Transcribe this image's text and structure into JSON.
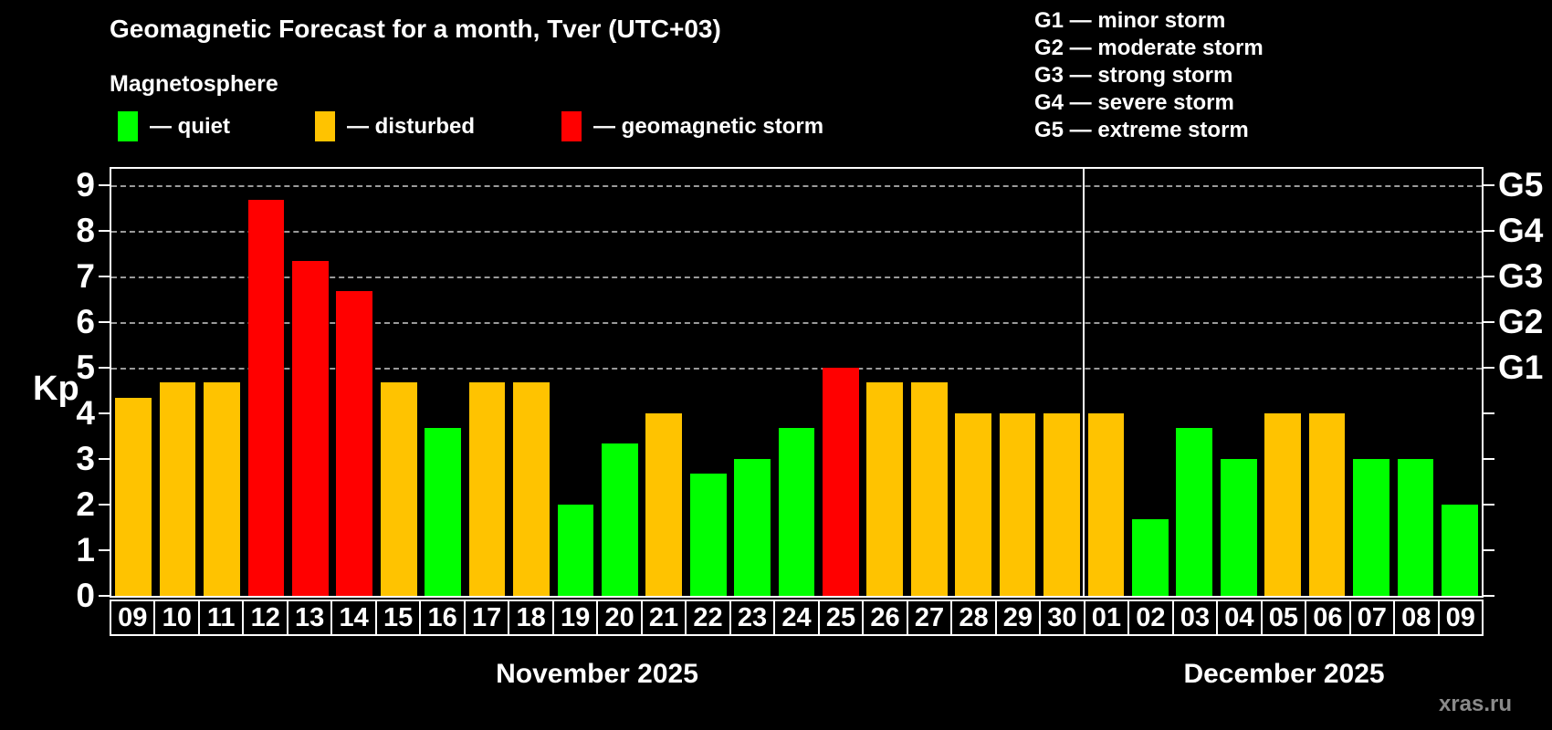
{
  "title": "Geomagnetic Forecast for a month, Tver (UTC+03)",
  "subtitle": "Magnetosphere",
  "legend": {
    "items": [
      {
        "label": "— quiet",
        "state": "quiet",
        "color": "#00ff00"
      },
      {
        "label": "— disturbed",
        "state": "disturbed",
        "color": "#ffc300"
      },
      {
        "label": "— geomagnetic storm",
        "state": "storm",
        "color": "#ff0000"
      }
    ]
  },
  "storm_scale_legend": [
    "G1 — minor storm",
    "G2 — moderate storm",
    "G3 — strong storm",
    "G4 — severe storm",
    "G5 — extreme storm"
  ],
  "watermark": "xras.ru",
  "chart_data": {
    "type": "bar",
    "title": "Geomagnetic Forecast for a month, Tver (UTC+03)",
    "ylabel": "Kp",
    "ylim": [
      0,
      9.35
    ],
    "grid": "dashed horizontal lines at Kp 5-9 only",
    "gridlines_at": [
      5,
      6,
      7,
      8,
      9
    ],
    "yticks_left": [
      "0",
      "1",
      "2",
      "3",
      "4",
      "5",
      "6",
      "7",
      "8",
      "9"
    ],
    "yticks_right": [
      {
        "kp": 5,
        "label": "G1"
      },
      {
        "kp": 6,
        "label": "G2"
      },
      {
        "kp": 7,
        "label": "G3"
      },
      {
        "kp": 8,
        "label": "G4"
      },
      {
        "kp": 9,
        "label": "G5"
      }
    ],
    "categories": [
      "09",
      "10",
      "11",
      "12",
      "13",
      "14",
      "15",
      "16",
      "17",
      "18",
      "19",
      "20",
      "21",
      "22",
      "23",
      "24",
      "25",
      "26",
      "27",
      "28",
      "29",
      "30",
      "01",
      "02",
      "03",
      "04",
      "05",
      "06",
      "07",
      "08",
      "09"
    ],
    "values": [
      4.33,
      4.67,
      4.67,
      8.67,
      7.33,
      6.67,
      4.67,
      3.67,
      4.67,
      4.67,
      2.0,
      3.33,
      4.0,
      2.67,
      3.0,
      3.67,
      5.0,
      4.67,
      4.67,
      4.0,
      4.0,
      4.0,
      4.0,
      1.67,
      3.67,
      3.0,
      4.0,
      4.0,
      3.0,
      3.0,
      2.0
    ],
    "states": [
      "disturbed",
      "disturbed",
      "disturbed",
      "storm",
      "storm",
      "storm",
      "disturbed",
      "quiet",
      "disturbed",
      "disturbed",
      "quiet",
      "quiet",
      "disturbed",
      "quiet",
      "quiet",
      "quiet",
      "storm",
      "disturbed",
      "disturbed",
      "disturbed",
      "disturbed",
      "disturbed",
      "disturbed",
      "quiet",
      "quiet",
      "quiet",
      "disturbed",
      "disturbed",
      "quiet",
      "quiet",
      "quiet"
    ],
    "colors": {
      "quiet": "#00ff00",
      "disturbed": "#ffc300",
      "storm": "#ff0000"
    },
    "months": [
      {
        "label": "November 2025",
        "days": 22
      },
      {
        "label": "December 2025",
        "days": 9
      }
    ],
    "legend_position": "top-left"
  }
}
